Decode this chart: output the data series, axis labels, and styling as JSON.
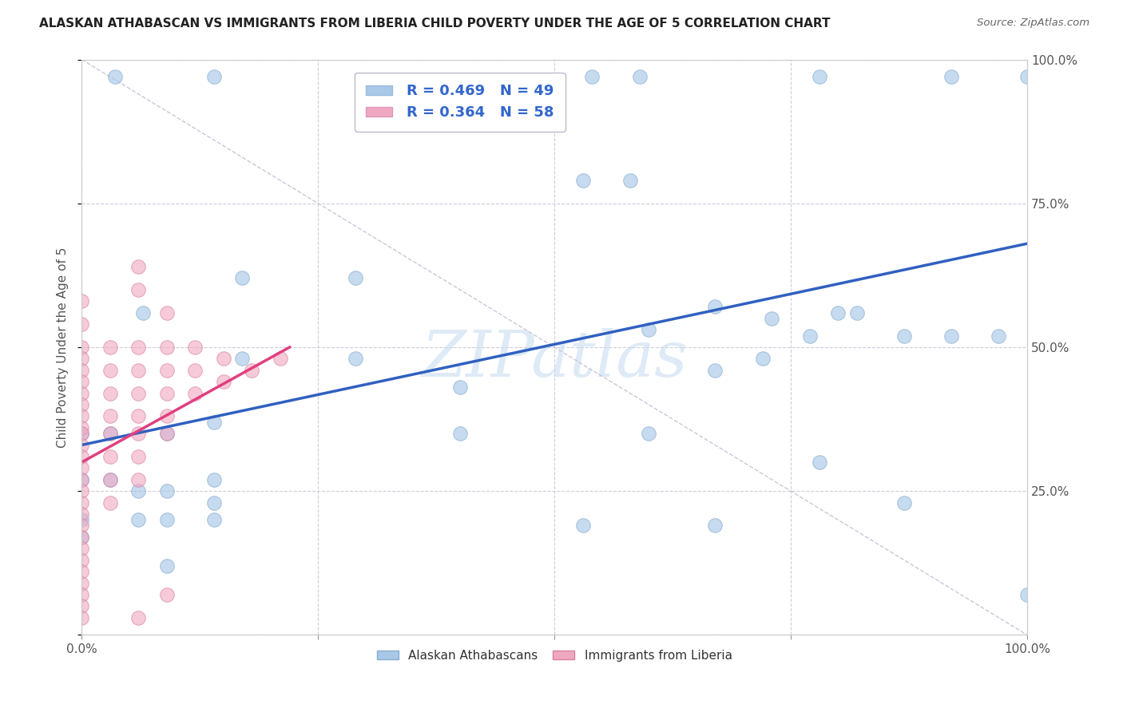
{
  "title": "ALASKAN ATHABASCAN VS IMMIGRANTS FROM LIBERIA CHILD POVERTY UNDER THE AGE OF 5 CORRELATION CHART",
  "source": "Source: ZipAtlas.com",
  "ylabel": "Child Poverty Under the Age of 5",
  "xlim": [
    0,
    1
  ],
  "ylim": [
    0,
    1
  ],
  "color_blue": "#A8C8E8",
  "color_pink": "#F0A8C0",
  "color_blue_line": "#3060C0",
  "color_pink_line": "#E04080",
  "color_dashed": "#C8C8D8",
  "watermark": "ZIPatlas",
  "background_color": "#FFFFFF",
  "blue_line_x0": 0.0,
  "blue_line_y0": 0.33,
  "blue_line_x1": 1.0,
  "blue_line_y1": 0.68,
  "pink_line_x0": 0.0,
  "pink_line_y0": 0.3,
  "pink_line_x1": 0.22,
  "pink_line_y1": 0.5,
  "blue_points": [
    [
      0.035,
      0.97
    ],
    [
      0.14,
      0.97
    ],
    [
      0.54,
      0.97
    ],
    [
      0.59,
      0.97
    ],
    [
      0.78,
      0.97
    ],
    [
      0.92,
      0.97
    ],
    [
      1.0,
      0.97
    ],
    [
      0.53,
      0.79
    ],
    [
      0.58,
      0.79
    ],
    [
      0.17,
      0.62
    ],
    [
      0.29,
      0.62
    ],
    [
      0.065,
      0.56
    ],
    [
      0.17,
      0.48
    ],
    [
      0.29,
      0.48
    ],
    [
      0.4,
      0.43
    ],
    [
      0.6,
      0.53
    ],
    [
      0.67,
      0.57
    ],
    [
      0.73,
      0.55
    ],
    [
      0.77,
      0.52
    ],
    [
      0.8,
      0.56
    ],
    [
      0.82,
      0.56
    ],
    [
      0.87,
      0.52
    ],
    [
      0.92,
      0.52
    ],
    [
      0.97,
      0.52
    ],
    [
      0.0,
      0.35
    ],
    [
      0.03,
      0.35
    ],
    [
      0.09,
      0.35
    ],
    [
      0.14,
      0.37
    ],
    [
      0.4,
      0.35
    ],
    [
      0.6,
      0.35
    ],
    [
      0.67,
      0.46
    ],
    [
      0.72,
      0.48
    ],
    [
      0.53,
      0.19
    ],
    [
      0.67,
      0.19
    ],
    [
      0.78,
      0.3
    ],
    [
      0.87,
      0.23
    ],
    [
      0.0,
      0.27
    ],
    [
      0.03,
      0.27
    ],
    [
      0.06,
      0.25
    ],
    [
      0.09,
      0.25
    ],
    [
      0.14,
      0.27
    ],
    [
      0.14,
      0.23
    ],
    [
      0.0,
      0.2
    ],
    [
      0.0,
      0.17
    ],
    [
      0.06,
      0.2
    ],
    [
      0.09,
      0.2
    ],
    [
      0.14,
      0.2
    ],
    [
      0.09,
      0.12
    ],
    [
      1.0,
      0.07
    ]
  ],
  "pink_points": [
    [
      0.0,
      0.58
    ],
    [
      0.0,
      0.54
    ],
    [
      0.0,
      0.5
    ],
    [
      0.0,
      0.48
    ],
    [
      0.0,
      0.46
    ],
    [
      0.0,
      0.44
    ],
    [
      0.0,
      0.42
    ],
    [
      0.0,
      0.4
    ],
    [
      0.0,
      0.38
    ],
    [
      0.0,
      0.36
    ],
    [
      0.0,
      0.35
    ],
    [
      0.0,
      0.33
    ],
    [
      0.0,
      0.31
    ],
    [
      0.0,
      0.29
    ],
    [
      0.0,
      0.27
    ],
    [
      0.0,
      0.25
    ],
    [
      0.0,
      0.23
    ],
    [
      0.0,
      0.21
    ],
    [
      0.0,
      0.19
    ],
    [
      0.0,
      0.17
    ],
    [
      0.0,
      0.15
    ],
    [
      0.0,
      0.13
    ],
    [
      0.0,
      0.11
    ],
    [
      0.0,
      0.09
    ],
    [
      0.0,
      0.07
    ],
    [
      0.0,
      0.05
    ],
    [
      0.03,
      0.5
    ],
    [
      0.03,
      0.46
    ],
    [
      0.03,
      0.42
    ],
    [
      0.03,
      0.38
    ],
    [
      0.03,
      0.35
    ],
    [
      0.03,
      0.31
    ],
    [
      0.03,
      0.27
    ],
    [
      0.03,
      0.23
    ],
    [
      0.06,
      0.5
    ],
    [
      0.06,
      0.46
    ],
    [
      0.06,
      0.42
    ],
    [
      0.06,
      0.38
    ],
    [
      0.06,
      0.35
    ],
    [
      0.06,
      0.31
    ],
    [
      0.06,
      0.27
    ],
    [
      0.09,
      0.5
    ],
    [
      0.09,
      0.46
    ],
    [
      0.09,
      0.42
    ],
    [
      0.09,
      0.38
    ],
    [
      0.09,
      0.35
    ],
    [
      0.12,
      0.5
    ],
    [
      0.12,
      0.46
    ],
    [
      0.12,
      0.42
    ],
    [
      0.15,
      0.48
    ],
    [
      0.15,
      0.44
    ],
    [
      0.18,
      0.46
    ],
    [
      0.21,
      0.48
    ],
    [
      0.0,
      0.03
    ],
    [
      0.06,
      0.6
    ],
    [
      0.06,
      0.64
    ],
    [
      0.09,
      0.56
    ],
    [
      0.06,
      0.03
    ],
    [
      0.09,
      0.07
    ]
  ]
}
